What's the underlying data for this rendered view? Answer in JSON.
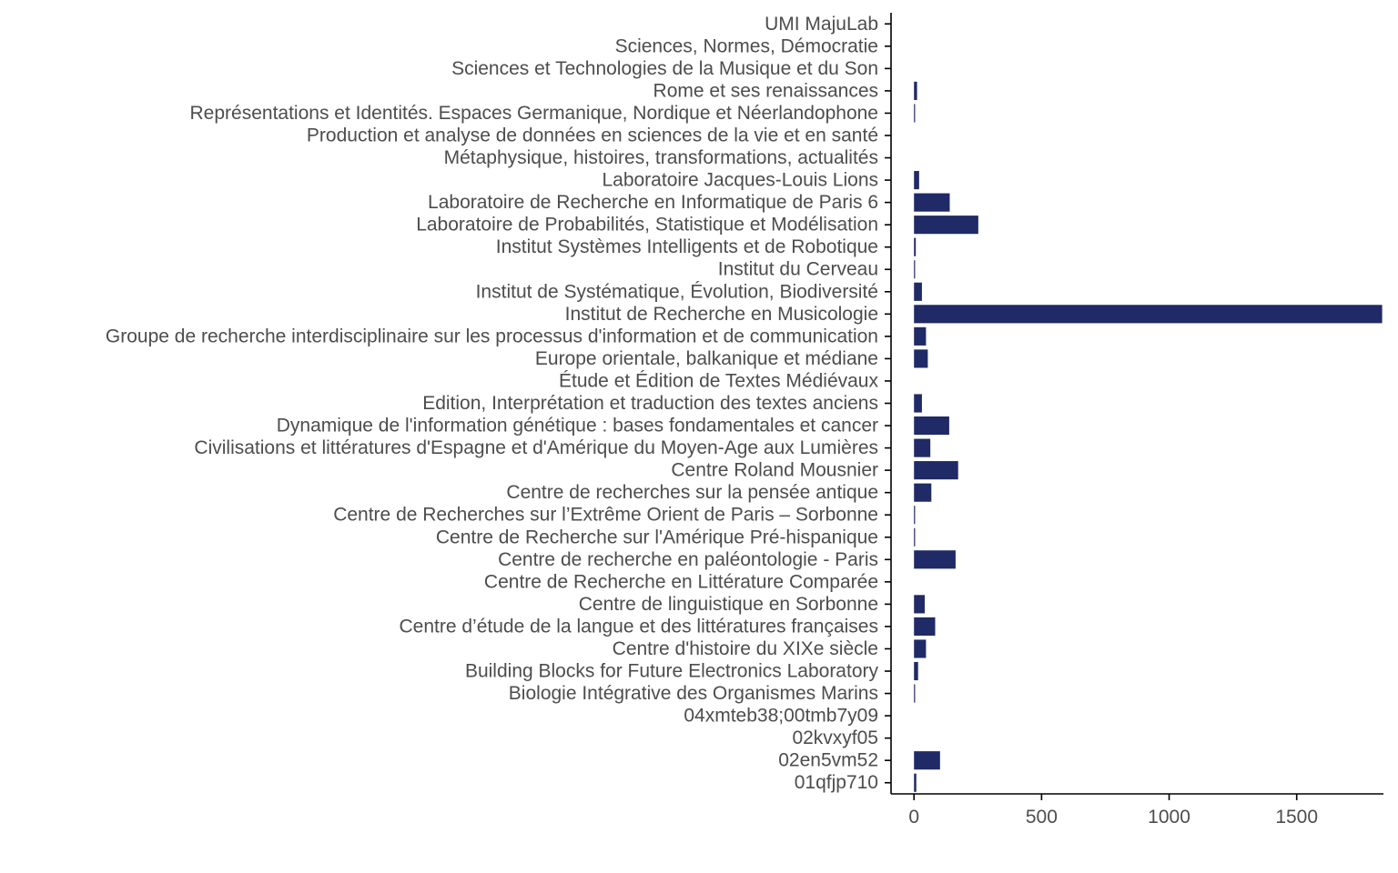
{
  "chart_data": {
    "type": "bar",
    "orientation": "horizontal",
    "title": "",
    "xlabel": "",
    "ylabel": "",
    "bar_color": "#1f2a66",
    "xlim": [
      -90,
      1840
    ],
    "x_ticks": [
      0,
      500,
      1000,
      1500
    ],
    "x_tick_labels": [
      "0",
      "500",
      "1000",
      "1500"
    ],
    "grid": false,
    "legend": "none",
    "categories": [
      "UMI MajuLab",
      "Sciences, Normes, Démocratie",
      "Sciences et Technologies de la Musique et du Son",
      "Rome et ses renaissances",
      "Représentations et Identités. Espaces Germanique, Nordique et Néerlandophone",
      "Production et analyse de données en sciences de la vie et en santé",
      "Métaphysique, histoires, transformations, actualités",
      "Laboratoire Jacques-Louis Lions",
      "Laboratoire de Recherche en Informatique de Paris 6",
      "Laboratoire de Probabilités, Statistique et Modélisation",
      "Institut Systèmes Intelligents et de Robotique",
      "Institut du Cerveau",
      "Institut de Systématique, Évolution, Biodiversité",
      "Institut de Recherche en Musicologie",
      "Groupe de recherche interdisciplinaire sur les processus d'information et de communication",
      "Europe orientale, balkanique et médiane",
      "Étude et Édition de Textes Médiévaux",
      "Edition, Interprétation et traduction des textes anciens",
      "Dynamique de l'information génétique : bases fondamentales et cancer",
      "Civilisations et littératures d'Espagne et d'Amérique du Moyen-Age aux Lumières",
      "Centre Roland Mousnier",
      "Centre de recherches sur la pensée antique",
      "Centre de Recherches sur l’Extrême Orient de Paris – Sorbonne",
      "Centre de Recherche sur l'Amérique Pré-hispanique",
      "Centre de recherche en paléontologie - Paris",
      "Centre de Recherche en Littérature Comparée",
      "Centre de linguistique en Sorbonne",
      "Centre d’étude de la langue et des littératures françaises",
      "Centre d'histoire du XIXe siècle",
      "Building Blocks for Future Electronics Laboratory",
      "Biologie Intégrative des Organismes Marins",
      "04xmteb38;00tmb7y09",
      "02kvxyf05",
      "02en5vm52",
      "01qfjp710"
    ],
    "values": [
      0,
      0,
      0,
      12,
      4,
      0,
      0,
      20,
      140,
      252,
      7,
      3,
      31,
      1835,
      47,
      54,
      0,
      31,
      138,
      64,
      173,
      68,
      3,
      3,
      163,
      0,
      42,
      83,
      47,
      16,
      3,
      0,
      0,
      102,
      9
    ]
  }
}
